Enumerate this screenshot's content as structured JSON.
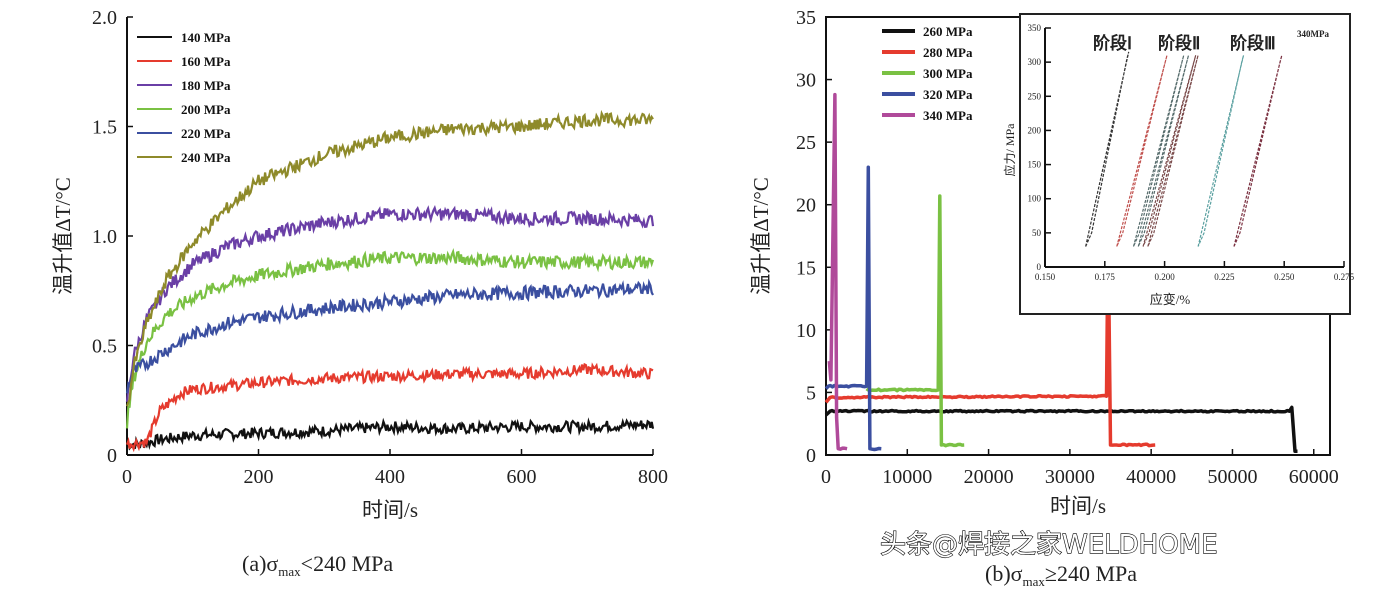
{
  "chart_data": [
    {
      "type": "line",
      "xlabel": "时间/s",
      "ylabel": "温升值ΔT/°C",
      "xlim": [
        0,
        800
      ],
      "ylim": [
        0,
        2.0
      ],
      "xticks": [
        "0",
        "200",
        "400",
        "600",
        "800"
      ],
      "yticks": [
        "0",
        "0.5",
        "1.0",
        "1.5",
        "2.0"
      ],
      "legend_position": "top-left",
      "caption": "(a)σmax<240 MPa",
      "caption_parts": {
        "prefix": "(a)σ",
        "sub": "max",
        "suffix": "<240 MPa"
      },
      "series": [
        {
          "name": "140 MPa",
          "color": "#111111",
          "x": [
            0,
            20,
            50,
            100,
            200,
            300,
            400,
            500,
            600,
            700,
            800
          ],
          "y": [
            0.05,
            0.05,
            0.07,
            0.09,
            0.1,
            0.11,
            0.13,
            0.12,
            0.13,
            0.13,
            0.14
          ]
        },
        {
          "name": "160 MPa",
          "color": "#e53b2e",
          "x": [
            0,
            30,
            50,
            80,
            100,
            200,
            300,
            400,
            500,
            600,
            700,
            800
          ],
          "y": [
            0.05,
            0.06,
            0.2,
            0.28,
            0.3,
            0.33,
            0.35,
            0.36,
            0.37,
            0.37,
            0.39,
            0.37
          ]
        },
        {
          "name": "180 MPa",
          "color": "#6a3fa6",
          "x": [
            0,
            10,
            30,
            60,
            100,
            150,
            200,
            300,
            400,
            500,
            600,
            700,
            800
          ],
          "y": [
            0.25,
            0.45,
            0.62,
            0.76,
            0.87,
            0.95,
            1.0,
            1.06,
            1.1,
            1.1,
            1.08,
            1.08,
            1.07
          ]
        },
        {
          "name": "200 MPa",
          "color": "#7ac143",
          "x": [
            0,
            10,
            30,
            60,
            100,
            150,
            200,
            300,
            400,
            500,
            600,
            700,
            800
          ],
          "y": [
            0.15,
            0.35,
            0.52,
            0.64,
            0.72,
            0.78,
            0.82,
            0.87,
            0.9,
            0.9,
            0.88,
            0.88,
            0.88
          ]
        },
        {
          "name": "220 MPa",
          "color": "#3b4fa0",
          "x": [
            0,
            10,
            30,
            60,
            100,
            150,
            200,
            300,
            400,
            500,
            600,
            700,
            800
          ],
          "y": [
            0.3,
            0.38,
            0.42,
            0.48,
            0.55,
            0.6,
            0.63,
            0.67,
            0.7,
            0.73,
            0.74,
            0.75,
            0.76
          ]
        },
        {
          "name": "240 MPa",
          "color": "#8e8a2a",
          "x": [
            0,
            10,
            30,
            60,
            100,
            150,
            200,
            300,
            400,
            500,
            600,
            700,
            800
          ],
          "y": [
            0.2,
            0.4,
            0.6,
            0.8,
            0.97,
            1.12,
            1.25,
            1.37,
            1.45,
            1.49,
            1.5,
            1.53,
            1.53
          ]
        }
      ]
    },
    {
      "type": "line",
      "xlabel": "时间/s",
      "ylabel": "温升值ΔT/°C",
      "xlim": [
        0,
        62000
      ],
      "ylim": [
        0,
        35
      ],
      "xticks": [
        "0",
        "10000",
        "20000",
        "30000",
        "40000",
        "50000",
        "60000"
      ],
      "yticks": [
        "0",
        "5",
        "10",
        "15",
        "20",
        "25",
        "30",
        "35"
      ],
      "legend_position": "top-left",
      "caption": "(b)σmax≥240 MPa",
      "caption_parts": {
        "prefix": "(b)σ",
        "sub": "max",
        "suffix": "≥240 MPa"
      },
      "series": [
        {
          "name": "260 MPa",
          "color": "#111111",
          "x": [
            0,
            500,
            57000,
            57300,
            57700,
            58000
          ],
          "y": [
            3.2,
            3.5,
            3.5,
            3.8,
            0.3,
            0.3
          ]
        },
        {
          "name": "280 MPa",
          "color": "#e53b2e",
          "x": [
            0,
            500,
            34500,
            34700,
            35000,
            40500
          ],
          "y": [
            4.2,
            4.6,
            4.7,
            18,
            0.8,
            0.8
          ]
        },
        {
          "name": "300 MPa",
          "color": "#7ac143",
          "x": [
            5000,
            5200,
            13800,
            14000,
            14200,
            17000
          ],
          "y": [
            5.3,
            5.2,
            5.2,
            20.7,
            0.8,
            0.8
          ]
        },
        {
          "name": "320 MPa",
          "color": "#3b4fa0",
          "x": [
            0,
            300,
            5000,
            5200,
            5400,
            6800
          ],
          "y": [
            5.3,
            5.5,
            5.5,
            23,
            0.5,
            0.5
          ]
        },
        {
          "name": "340 MPa",
          "color": "#b04a9a",
          "x": [
            400,
            600,
            1100,
            1300,
            1500,
            2600
          ],
          "y": [
            7.5,
            6,
            28.8,
            3,
            0.5,
            0.5
          ]
        }
      ],
      "inset": {
        "type": "line",
        "xlabel": "应变/%",
        "ylabel": "应力/ MPa",
        "xlim": [
          0.15,
          0.275
        ],
        "ylim": [
          0,
          350
        ],
        "xticks": [
          "0.150",
          "0.175",
          "0.200",
          "0.225",
          "0.250",
          "0.275"
        ],
        "yticks": [
          "0",
          "50",
          "100",
          "150",
          "200",
          "250",
          "300",
          "350"
        ],
        "annotations": [
          "阶段Ⅰ",
          "阶段Ⅱ",
          "阶段Ⅲ",
          "340MPa"
        ],
        "loops": [
          {
            "color": "#333333",
            "strain": [
              0.167,
              0.185
            ],
            "stress": [
              30,
              315
            ]
          },
          {
            "color": "#c0504d",
            "strain": [
              0.18,
              0.201
            ],
            "stress": [
              30,
              310
            ]
          },
          {
            "color": "#556b6b",
            "strain": [
              0.187,
              0.208
            ],
            "stress": [
              30,
              310
            ]
          },
          {
            "color": "#556b6b",
            "strain": [
              0.189,
              0.21
            ],
            "stress": [
              30,
              310
            ]
          },
          {
            "color": "#7a4a4a",
            "strain": [
              0.191,
              0.213
            ],
            "stress": [
              30,
              310
            ]
          },
          {
            "color": "#7a4a4a",
            "strain": [
              0.193,
              0.214
            ],
            "stress": [
              30,
              310
            ]
          },
          {
            "color": "#5aa0a0",
            "strain": [
              0.214,
              0.233
            ],
            "stress": [
              30,
              310
            ]
          },
          {
            "color": "#7a3040",
            "strain": [
              0.229,
              0.249
            ],
            "stress": [
              30,
              310
            ]
          }
        ]
      }
    }
  ],
  "watermark": "头条@焊接之家WELDHOME"
}
